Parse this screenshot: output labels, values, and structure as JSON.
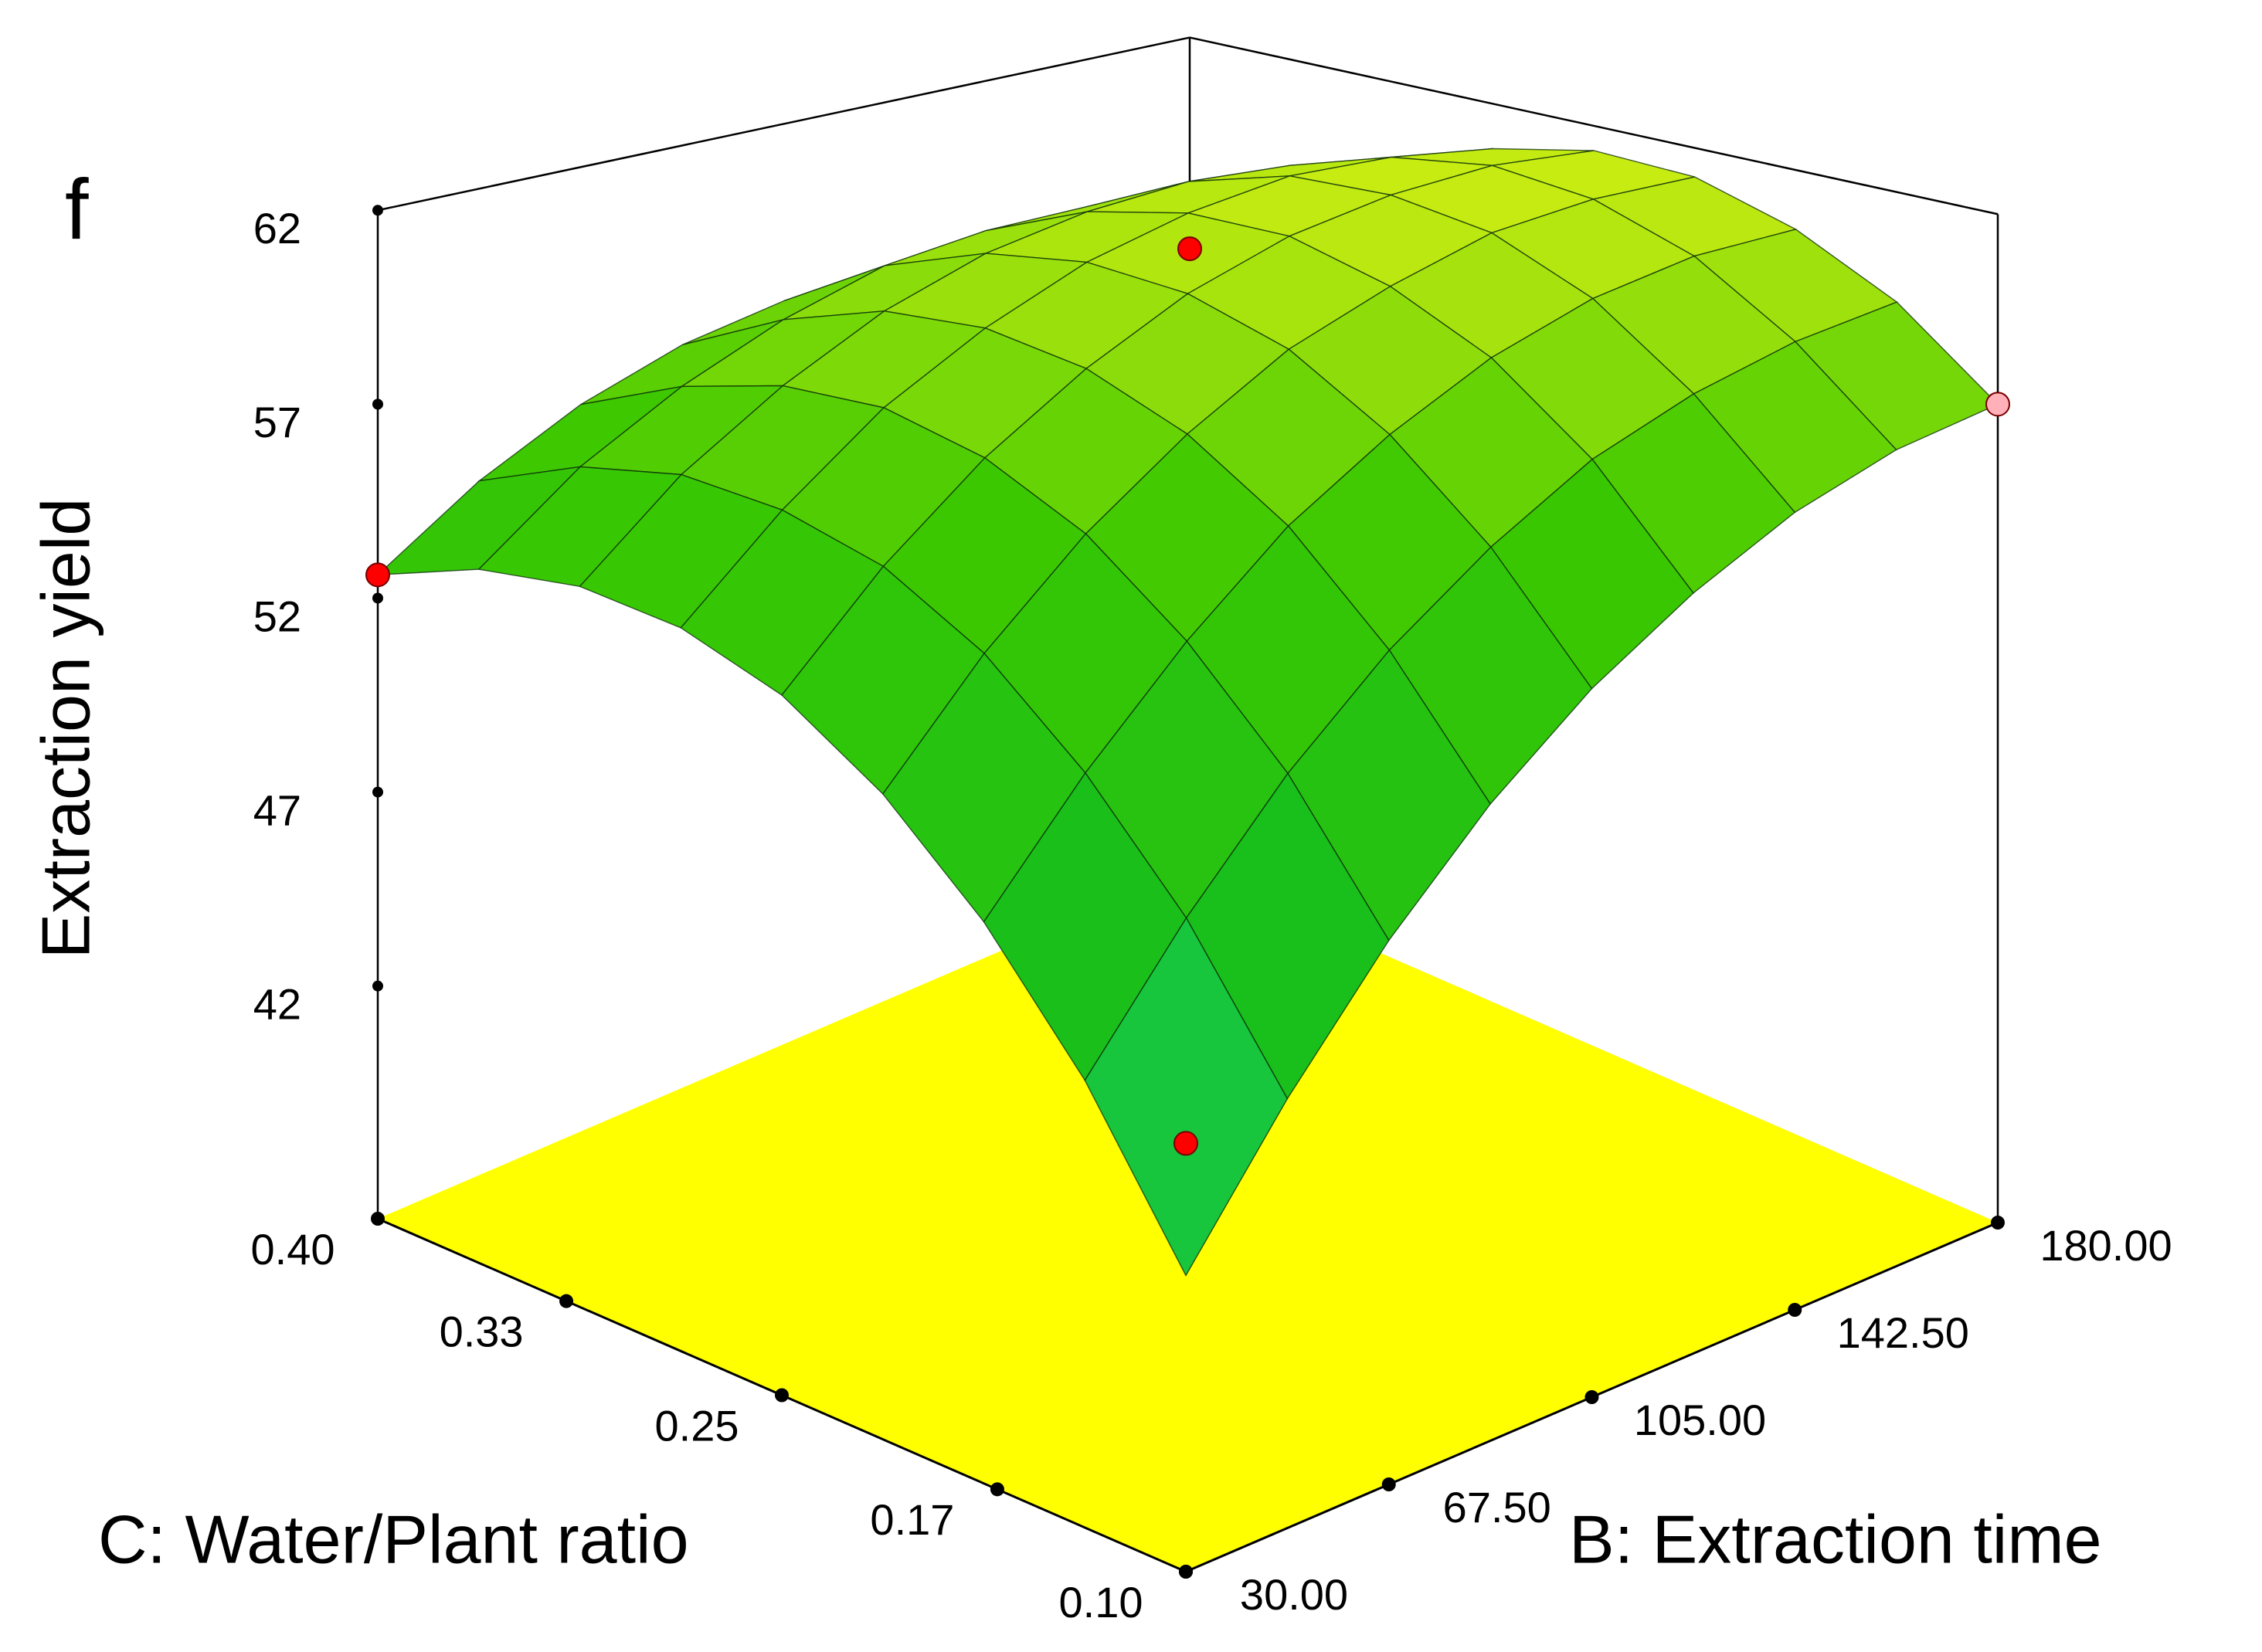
{
  "chart_data": {
    "type": "surface",
    "panel_label": "f",
    "zlabel": "Extraction yield",
    "xlabel": "B: Extraction time",
    "ylabel": "C: Water/Plant ratio",
    "x": [
      30,
      48.75,
      67.5,
      86.25,
      105,
      123.75,
      142.5,
      161.25,
      180
    ],
    "y": [
      0.1,
      0.1375,
      0.175,
      0.2125,
      0.25,
      0.2875,
      0.325,
      0.3625,
      0.4
    ],
    "z": [
      [
        42.5,
        46.0,
        48.8,
        51.0,
        52.6,
        53.5,
        53.8,
        53.5,
        52.6
      ],
      [
        45.6,
        48.9,
        51.5,
        53.6,
        55.0,
        55.7,
        55.9,
        55.4,
        54.3
      ],
      [
        48.4,
        51.5,
        53.9,
        55.8,
        57.0,
        57.6,
        57.5,
        56.8,
        55.6
      ],
      [
        50.8,
        53.7,
        56.0,
        57.6,
        58.6,
        59.0,
        58.8,
        57.9,
        56.5
      ],
      [
        52.8,
        55.5,
        57.6,
        59.1,
        59.9,
        60.1,
        59.7,
        58.7,
        57.0
      ],
      [
        54.4,
        57.0,
        58.9,
        60.1,
        60.8,
        60.8,
        60.2,
        59.0,
        57.2
      ],
      [
        55.7,
        58.0,
        59.8,
        60.9,
        61.3,
        61.2,
        60.4,
        59.0,
        57.0
      ],
      [
        56.6,
        58.7,
        60.3,
        61.2,
        61.5,
        61.1,
        60.2,
        58.6,
        56.4
      ],
      [
        57.1,
        59.1,
        60.4,
        61.2,
        61.3,
        60.7,
        59.6,
        57.8,
        55.4
      ]
    ],
    "points": {
      "x": [
        30,
        30,
        180,
        180
      ],
      "y": [
        0.1,
        0.4,
        0.4,
        0.1
      ],
      "z": [
        45.4,
        52.6,
        55.4,
        57.1
      ],
      "colors": [
        "#ff0000",
        "#ff0000",
        "#ff0000",
        "#ffb0b8"
      ]
    },
    "xlim": [
      30,
      180
    ],
    "xticks": [
      {
        "value": 30,
        "label": "30.00"
      },
      {
        "value": 67.5,
        "label": "67.50"
      },
      {
        "value": 105,
        "label": "105.00"
      },
      {
        "value": 142.5,
        "label": "142.50"
      },
      {
        "value": 180,
        "label": "180.00"
      }
    ],
    "ylim": [
      0.1,
      0.4
    ],
    "yticks": [
      {
        "value": 0.1,
        "label": "0.10"
      },
      0.17,
      0.25,
      0.33,
      {
        "value": 0.4,
        "label": "0.40"
      }
    ],
    "zlim": [
      36,
      62
    ],
    "zticks": [
      42,
      47,
      52,
      57,
      62
    ],
    "floor_color": "#ffff00"
  }
}
